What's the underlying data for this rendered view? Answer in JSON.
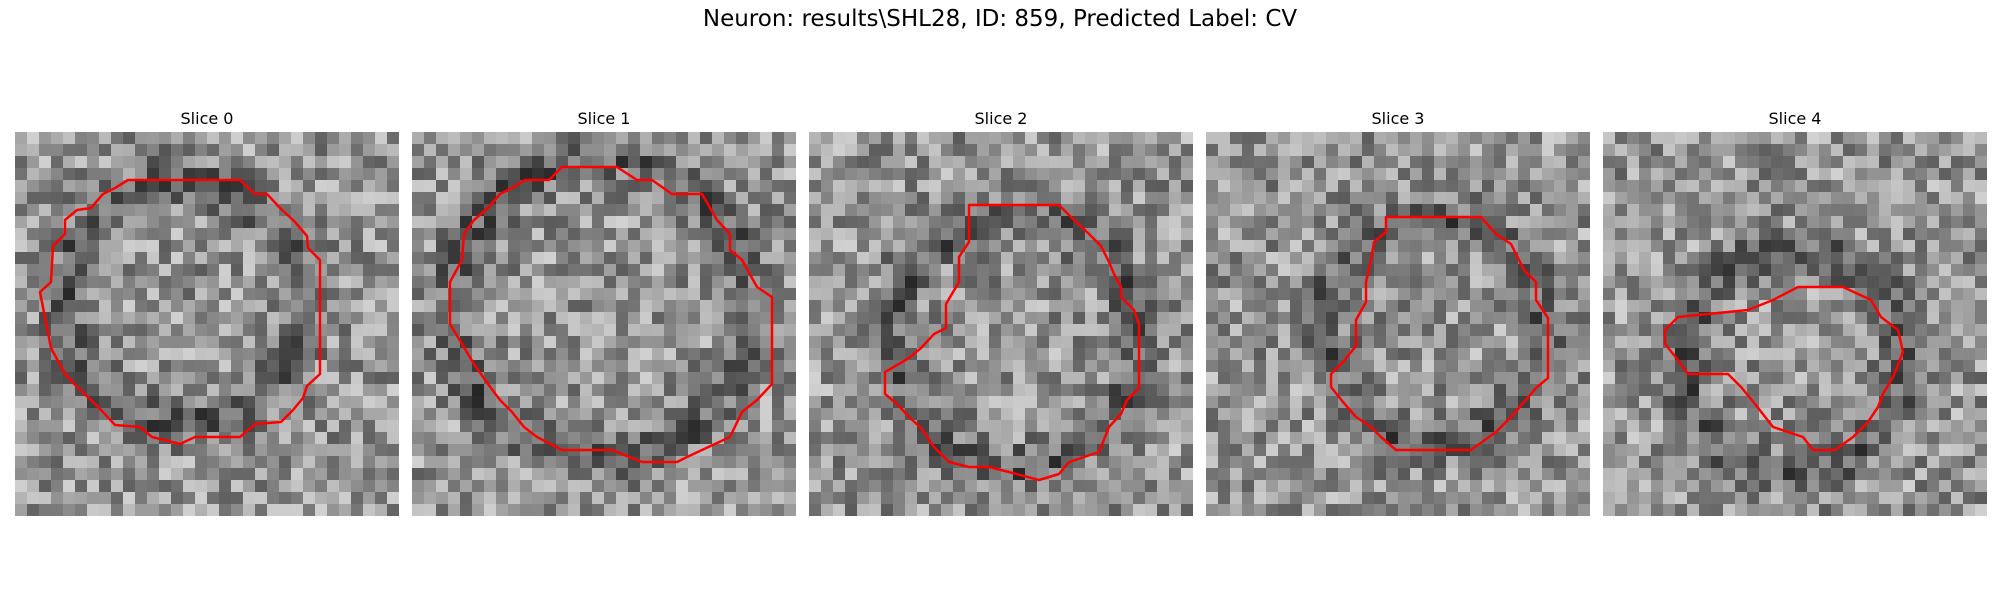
{
  "figure": {
    "title": "Neuron: results\\SHL28, ID: 859, Predicted Label: CV",
    "contour_color": "#ff0000",
    "colormap": "gray"
  },
  "panels": [
    {
      "title": "Slice 0"
    },
    {
      "title": "Slice 1"
    },
    {
      "title": "Slice 2"
    },
    {
      "title": "Slice 3"
    },
    {
      "title": "Slice 4"
    }
  ]
}
